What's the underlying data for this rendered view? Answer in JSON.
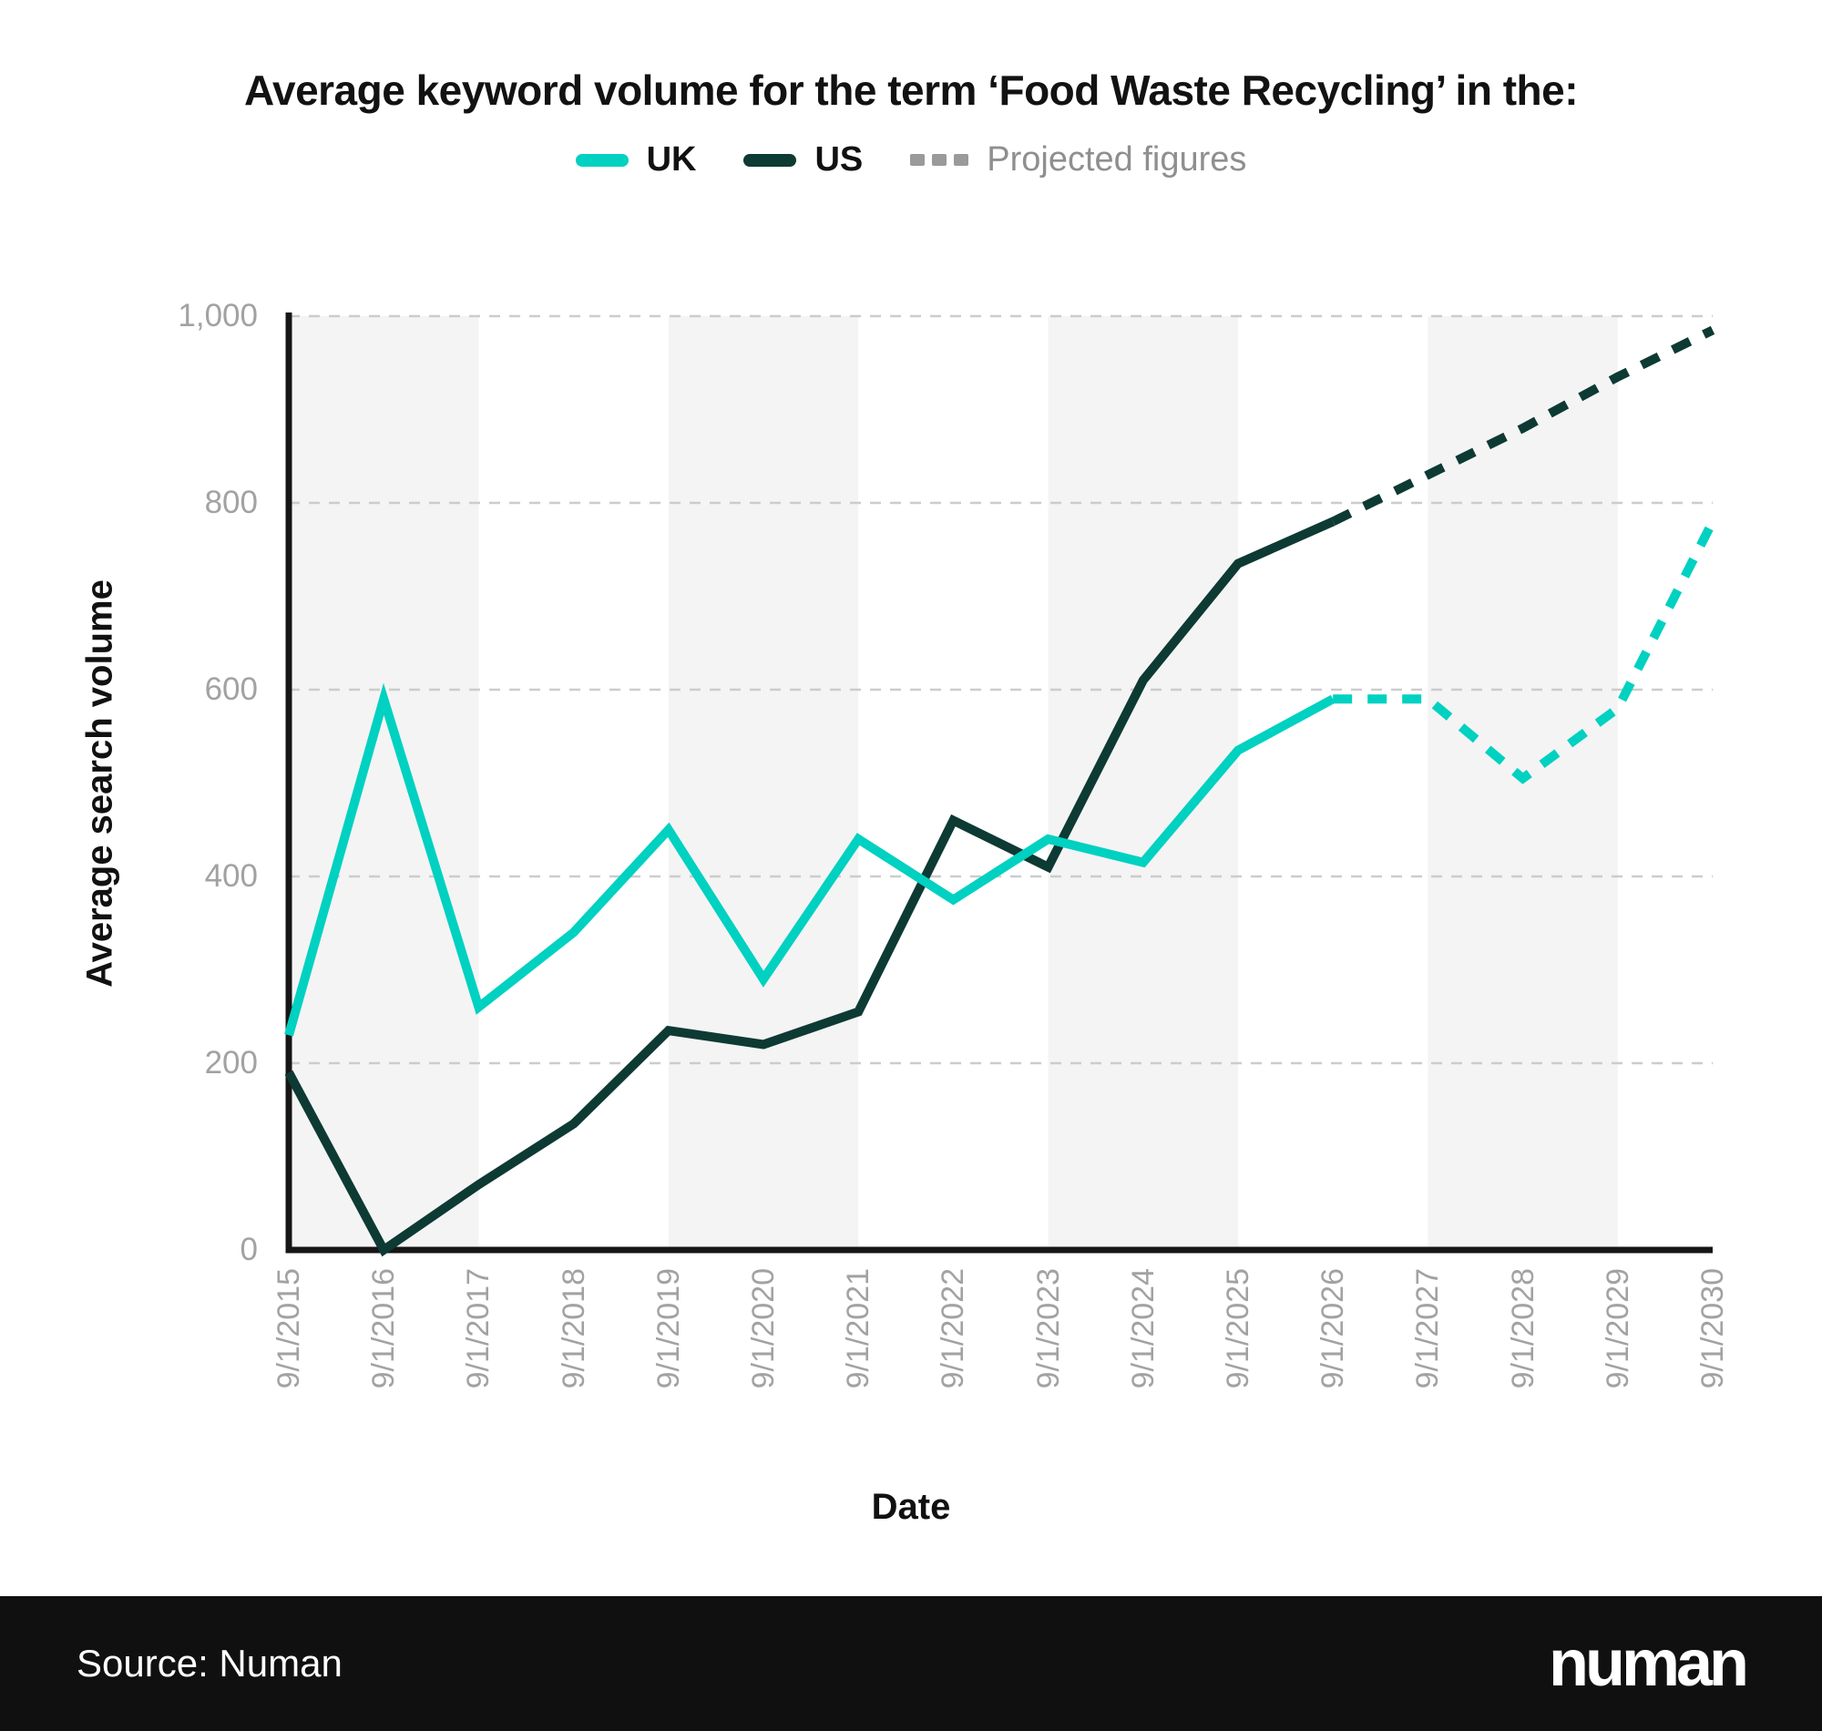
{
  "header": {
    "title": "Average keyword volume for the term ‘Food Waste Recycling’ in the:",
    "legend": [
      {
        "label": "UK",
        "color": "#00d1c1",
        "style": "solid"
      },
      {
        "label": "US",
        "color": "#0e3a34",
        "style": "solid"
      },
      {
        "label": "Projected figures",
        "color": "#9a9a9a",
        "style": "dashed"
      }
    ]
  },
  "chart_data": {
    "type": "line",
    "title": "Average keyword volume for the term ‘Food Waste Recycling’ in the:",
    "xlabel": "Date",
    "ylabel": "Average search volume",
    "x_labels": [
      "9/1/2015",
      "9/1/2016",
      "9/1/2017",
      "9/1/2018",
      "9/1/2019",
      "9/1/2020",
      "9/1/2021",
      "9/1/2022",
      "9/1/2023",
      "9/1/2024",
      "9/1/2025",
      "9/1/2026",
      "9/1/2027",
      "9/1/2028",
      "9/1/2029",
      "9/1/2030"
    ],
    "y_ticks": [
      {
        "label": "0",
        "value": 0
      },
      {
        "label": "200",
        "value": 200
      },
      {
        "label": "400",
        "value": 400
      },
      {
        "label": "600",
        "value": 600
      },
      {
        "label": "800",
        "value": 800
      },
      {
        "label": "1,000",
        "value": 1000
      }
    ],
    "ylim": [
      0,
      1000
    ],
    "grid": "horizontal-dashed",
    "legend_position": "top",
    "projection_start_index": 11,
    "projected_label": "Projected figures",
    "series": [
      {
        "name": "US",
        "color": "#0e3a34",
        "values": [
          190,
          0,
          70,
          135,
          235,
          220,
          255,
          460,
          410,
          610,
          735,
          780,
          830,
          880,
          935,
          985
        ]
      },
      {
        "name": "UK",
        "color": "#00d1c1",
        "values": [
          230,
          590,
          260,
          340,
          450,
          290,
          440,
          375,
          440,
          415,
          535,
          590,
          590,
          505,
          580,
          780
        ]
      }
    ],
    "style": {
      "band_color": "#f4f4f4",
      "grid_color": "#cccccc",
      "axis_color": "#161616",
      "tick_color": "#a2a2a2"
    }
  },
  "footer": {
    "source": "Source: Numan",
    "logo": "numan"
  }
}
